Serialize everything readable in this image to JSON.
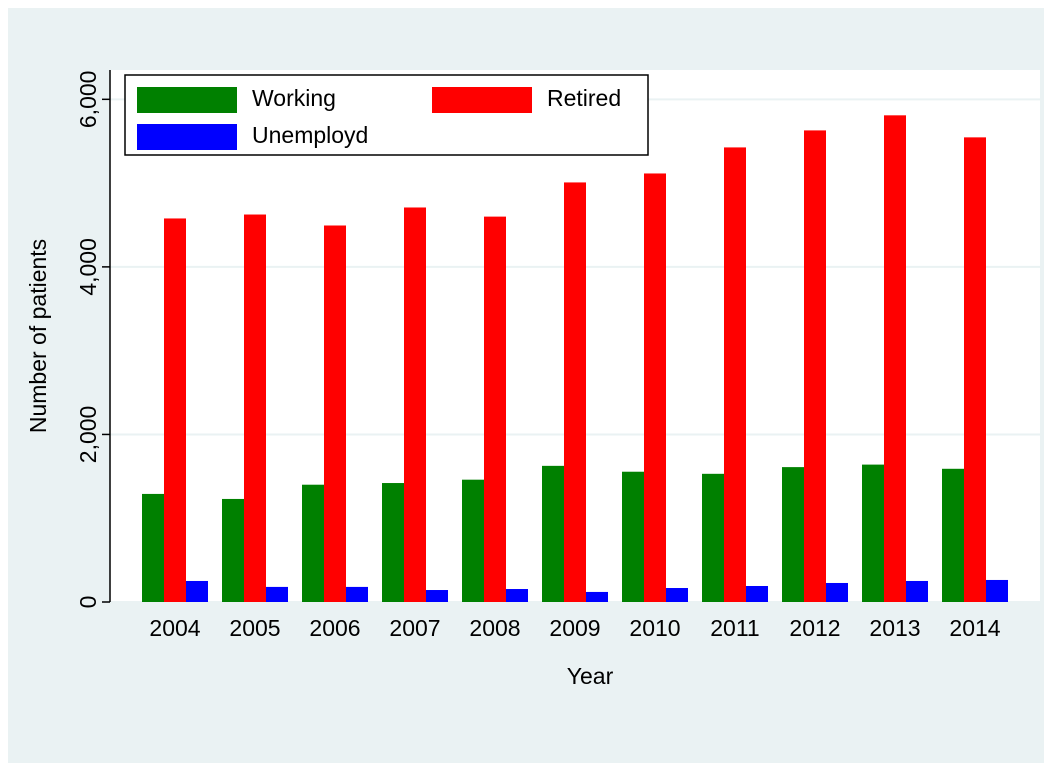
{
  "chart_data": {
    "type": "bar",
    "categories": [
      "2004",
      "2005",
      "2006",
      "2007",
      "2008",
      "2009",
      "2010",
      "2011",
      "2012",
      "2013",
      "2014"
    ],
    "series": [
      {
        "name": "Working",
        "color": "#008000",
        "values": [
          1290,
          1230,
          1400,
          1420,
          1460,
          1625,
          1555,
          1530,
          1610,
          1640,
          1590
        ]
      },
      {
        "name": "Retired",
        "color": "#ff0000",
        "values": [
          4578,
          4625,
          4494,
          4709,
          4600,
          5008,
          5115,
          5426,
          5629,
          5809,
          5546
        ]
      },
      {
        "name": "Unemployd",
        "color": "#0000ff",
        "values": [
          251,
          180,
          180,
          143,
          155,
          120,
          167,
          191,
          227,
          251,
          263
        ]
      }
    ],
    "xlabel": "Year",
    "ylabel": "Number of patients",
    "ylim": [
      0,
      6350
    ],
    "yticks": [
      0,
      {
        "value": 2000,
        "label": "2,000"
      },
      {
        "value": 4000,
        "label": "4,000"
      },
      {
        "value": 6000,
        "label": "6,000"
      }
    ],
    "grid": true,
    "legend": "top-left"
  }
}
